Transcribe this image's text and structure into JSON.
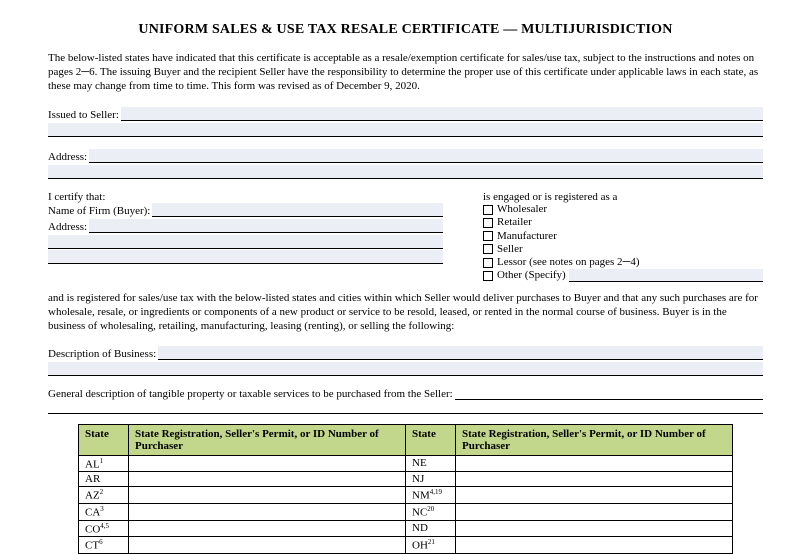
{
  "title": "UNIFORM SALES & USE TAX RESALE CERTIFICATE — MULTIJURISDICTION",
  "intro": "The below-listed states have indicated that this certificate is acceptable as a resale/exemption certificate for sales/use tax, subject to the instructions and notes on pages 2─6. The issuing Buyer and the recipient Seller have the responsibility to determine the proper use of this certificate under applicable laws in each state, as these may change from time to time. This form was revised as of December 9, 2020.",
  "issued_to": "Issued to Seller:",
  "address_label": "Address:",
  "certify": "I certify that:",
  "firm_label": "Name of Firm (Buyer):",
  "engaged": "is engaged or is registered as a",
  "checks": {
    "wholesaler": "Wholesaler",
    "retailer": "Retailer",
    "manufacturer": "Manufacturer",
    "seller": "Seller",
    "lessor": "Lessor (see notes on pages 2─4)",
    "other": "Other (Specify)"
  },
  "registered_para": "and is registered for sales/use tax with the below-listed states and cities within which Seller would deliver purchases to Buyer and that any such purchases are for wholesale, resale, or ingredients or components of a new product or service to be resold, leased, or rented in the normal course of business. Buyer is in the business of wholesaling, retailing, manufacturing, leasing (renting), or selling the following:",
  "desc_label": "Description of Business:",
  "general_desc": "General description of tangible property or taxable services to be purchased from the Seller:",
  "table": {
    "h_state": "State",
    "h_reg": "State Registration, Seller's Permit, or ID Number of Purchaser",
    "left": [
      {
        "code": "AL",
        "sup": "1"
      },
      {
        "code": "AR",
        "sup": ""
      },
      {
        "code": "AZ",
        "sup": "2"
      },
      {
        "code": "CA",
        "sup": "3"
      },
      {
        "code": "CO",
        "sup": "4,5"
      },
      {
        "code": "CT",
        "sup": "6"
      }
    ],
    "right": [
      {
        "code": "NE",
        "sup": ""
      },
      {
        "code": "NJ",
        "sup": ""
      },
      {
        "code": "NM",
        "sup": "4,19"
      },
      {
        "code": "NC",
        "sup": "20"
      },
      {
        "code": "ND",
        "sup": ""
      },
      {
        "code": "OH",
        "sup": "21"
      }
    ]
  }
}
